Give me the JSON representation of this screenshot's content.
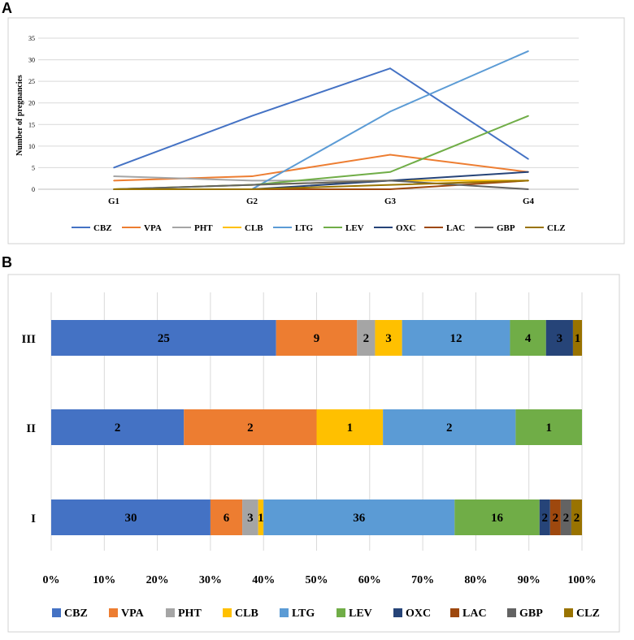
{
  "panels": {
    "a": "A",
    "b": "B"
  },
  "colors": {
    "CBZ": "#4472c4",
    "VPA": "#ed7d31",
    "PHT": "#a5a5a5",
    "CLB": "#ffc000",
    "LTG": "#5b9bd5",
    "LEV": "#70ad47",
    "OXC": "#264478",
    "LAC": "#9e480e",
    "GBP": "#636363",
    "CLZ": "#997300"
  },
  "chart_data": [
    {
      "type": "line",
      "panel": "A",
      "title": "",
      "xlabel": "",
      "ylabel": "Number of pregnancies",
      "categories": [
        "G1",
        "G2",
        "G3",
        "G4"
      ],
      "ylim": [
        0,
        35
      ],
      "yticks": [
        "0",
        "5",
        "10",
        "15",
        "20",
        "25",
        "30",
        "35"
      ],
      "grid": true,
      "legend_position": "bottom",
      "series": [
        {
          "name": "CBZ",
          "values": [
            5,
            17,
            28,
            7
          ]
        },
        {
          "name": "VPA",
          "values": [
            2,
            3,
            8,
            4
          ]
        },
        {
          "name": "PHT",
          "values": [
            3,
            2,
            2,
            2
          ]
        },
        {
          "name": "CLB",
          "values": [
            0,
            1,
            2,
            2
          ]
        },
        {
          "name": "LTG",
          "values": [
            0,
            0,
            18,
            32
          ]
        },
        {
          "name": "LEV",
          "values": [
            0,
            1,
            4,
            17
          ]
        },
        {
          "name": "OXC",
          "values": [
            0,
            0,
            2,
            4
          ]
        },
        {
          "name": "LAC",
          "values": [
            0,
            0,
            0,
            2
          ]
        },
        {
          "name": "GBP",
          "values": [
            0,
            1,
            2,
            0
          ]
        },
        {
          "name": "CLZ",
          "values": [
            0,
            0,
            1,
            2
          ]
        }
      ]
    },
    {
      "type": "bar",
      "orientation": "horizontal",
      "stacked": "percent",
      "panel": "B",
      "title": "",
      "categories": [
        "III",
        "II",
        "I"
      ],
      "xlim": [
        0,
        100
      ],
      "xticks": [
        "0%",
        "10%",
        "20%",
        "30%",
        "40%",
        "50%",
        "60%",
        "70%",
        "80%",
        "90%",
        "100%"
      ],
      "grid": true,
      "legend_position": "bottom",
      "series": [
        {
          "name": "CBZ",
          "values": [
            25,
            2,
            30
          ]
        },
        {
          "name": "VPA",
          "values": [
            9,
            2,
            6
          ]
        },
        {
          "name": "PHT",
          "values": [
            2,
            0,
            3
          ]
        },
        {
          "name": "CLB",
          "values": [
            3,
            1,
            1
          ]
        },
        {
          "name": "LTG",
          "values": [
            12,
            2,
            36
          ]
        },
        {
          "name": "LEV",
          "values": [
            4,
            1,
            16
          ]
        },
        {
          "name": "OXC",
          "values": [
            3,
            0,
            2
          ]
        },
        {
          "name": "LAC",
          "values": [
            0,
            0,
            2
          ]
        },
        {
          "name": "GBP",
          "values": [
            0,
            0,
            2
          ]
        },
        {
          "name": "CLZ",
          "values": [
            1,
            0,
            2
          ]
        }
      ]
    }
  ]
}
